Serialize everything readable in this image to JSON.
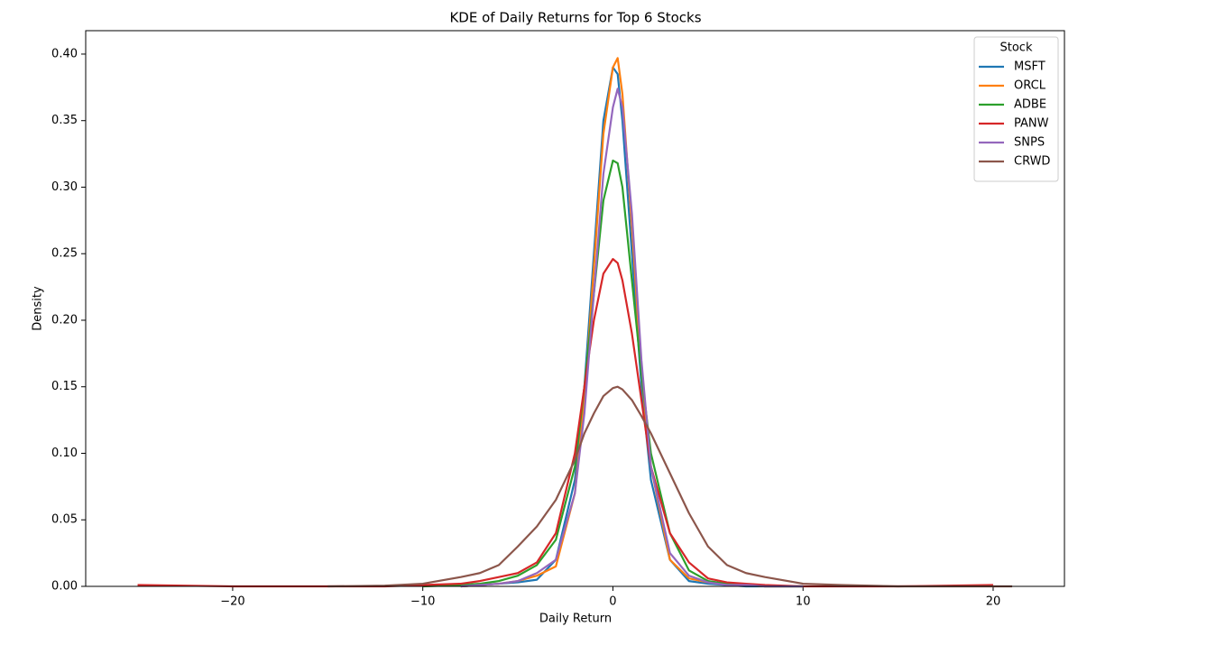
{
  "chart_data": {
    "type": "line",
    "title": "KDE of Daily Returns for Top 6 Stocks",
    "x_label": "Daily Return",
    "y_label": "Density",
    "x": [
      -25,
      -20,
      -15,
      -12,
      -10,
      -8,
      -7,
      -6,
      -5,
      -4,
      -3,
      -2,
      -1.5,
      -1,
      -0.5,
      0,
      0.25,
      0.5,
      1,
      1.5,
      2,
      3,
      4,
      5,
      6,
      7,
      8,
      10,
      12,
      15,
      20,
      21
    ],
    "series": [
      {
        "name": "MSFT",
        "color": "#1f77b4",
        "values": [
          null,
          null,
          null,
          null,
          null,
          0,
          0.001,
          0.002,
          0.003,
          0.005,
          0.02,
          0.08,
          0.15,
          0.25,
          0.35,
          0.39,
          0.385,
          0.35,
          0.25,
          0.15,
          0.08,
          0.02,
          0.004,
          0.002,
          0.001,
          0,
          0,
          0,
          null,
          null,
          null,
          null
        ]
      },
      {
        "name": "ORCL",
        "color": "#ff7f0e",
        "values": [
          null,
          null,
          null,
          null,
          null,
          0,
          0.001,
          0.002,
          0.004,
          0.008,
          0.015,
          0.07,
          0.14,
          0.24,
          0.34,
          0.39,
          0.397,
          0.37,
          0.27,
          0.16,
          0.09,
          0.02,
          0.006,
          0.003,
          0.002,
          0.001,
          0,
          0,
          null,
          null,
          null,
          null
        ]
      },
      {
        "name": "ADBE",
        "color": "#2ca02c",
        "values": [
          null,
          null,
          null,
          null,
          0,
          0.001,
          0.002,
          0.004,
          0.008,
          0.016,
          0.035,
          0.09,
          0.15,
          0.22,
          0.29,
          0.32,
          0.318,
          0.3,
          0.23,
          0.16,
          0.1,
          0.04,
          0.012,
          0.004,
          0.002,
          0.001,
          0,
          0,
          null,
          null,
          null,
          null
        ]
      },
      {
        "name": "PANW",
        "color": "#d62728",
        "values": [
          0.001,
          0,
          0,
          0,
          0.001,
          0.002,
          0.004,
          0.007,
          0.01,
          0.018,
          0.04,
          0.1,
          0.15,
          0.2,
          0.235,
          0.246,
          0.243,
          0.23,
          0.19,
          0.14,
          0.09,
          0.04,
          0.018,
          0.006,
          0.003,
          0.002,
          0.001,
          0,
          0,
          0,
          0.001,
          null
        ]
      },
      {
        "name": "SNPS",
        "color": "#9467bd",
        "values": [
          null,
          null,
          null,
          null,
          null,
          0,
          0.001,
          0.002,
          0.004,
          0.01,
          0.02,
          0.07,
          0.13,
          0.22,
          0.31,
          0.36,
          0.374,
          0.36,
          0.28,
          0.17,
          0.09,
          0.025,
          0.008,
          0.003,
          0.001,
          0.001,
          0,
          0,
          null,
          null,
          null,
          null
        ]
      },
      {
        "name": "CRWD",
        "color": "#8c564b",
        "values": [
          null,
          null,
          0,
          0.0005,
          0.002,
          0.007,
          0.01,
          0.016,
          0.03,
          0.045,
          0.065,
          0.095,
          0.115,
          0.13,
          0.143,
          0.149,
          0.15,
          0.148,
          0.14,
          0.128,
          0.115,
          0.085,
          0.055,
          0.03,
          0.016,
          0.01,
          0.007,
          0.002,
          0.001,
          0,
          0,
          0
        ]
      }
    ],
    "xlim": [
      -27.73,
      23.75
    ],
    "xticks": [
      {
        "value": -20,
        "label": "−20"
      },
      {
        "value": -10,
        "label": "−10"
      },
      0,
      10,
      20
    ],
    "ylim": [
      0,
      0.4176
    ],
    "yticks": [
      {
        "value": 0,
        "label": "0.00"
      },
      {
        "value": 0.05,
        "label": "0.05"
      },
      {
        "value": 0.1,
        "label": "0.10"
      },
      {
        "value": 0.15,
        "label": "0.15"
      },
      {
        "value": 0.2,
        "label": "0.20"
      },
      {
        "value": 0.25,
        "label": "0.25"
      },
      {
        "value": 0.3,
        "label": "0.30"
      },
      {
        "value": 0.35,
        "label": "0.35"
      },
      {
        "value": 0.4,
        "label": "0.40"
      }
    ],
    "legend_title": "Stock",
    "legend": "upper right",
    "grid": false
  }
}
